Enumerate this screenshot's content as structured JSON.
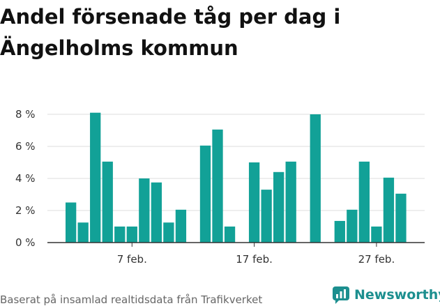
{
  "title": "Andel försenade tåg per dag i Ängelholms kommun",
  "footer": "Baserat på insamlad realtidsdata från Trafikverket",
  "brand": "Newsworthy",
  "colors": {
    "bar": "#12a197",
    "brand": "#1c8f8f",
    "grid": "#dddddd",
    "axis": "#333333"
  },
  "chart_data": {
    "type": "bar",
    "title": "Andel försenade tåg per dag i Ängelholms kommun",
    "xlabel": "",
    "ylabel": "",
    "ylim": [
      0,
      8.5
    ],
    "yticks": [
      0,
      2,
      4,
      6,
      8
    ],
    "ytick_labels": [
      "0 %",
      "2 %",
      "4 %",
      "6 %",
      "8 %"
    ],
    "x_tick_labels": [
      {
        "day": 7,
        "label": "7 feb."
      },
      {
        "day": 17,
        "label": "17 feb."
      },
      {
        "day": 27,
        "label": "27 feb."
      }
    ],
    "grid": true,
    "days": [
      2,
      3,
      4,
      5,
      6,
      7,
      8,
      9,
      10,
      11,
      12,
      13,
      14,
      15,
      16,
      17,
      18,
      19,
      20,
      21,
      22,
      23,
      24,
      25,
      26,
      27,
      28,
      29
    ],
    "values": [
      2.5,
      1.25,
      8.1,
      5.05,
      1.0,
      1.0,
      4.0,
      3.75,
      1.25,
      2.05,
      null,
      6.05,
      7.05,
      1.0,
      null,
      5.0,
      3.3,
      4.4,
      5.05,
      null,
      8.0,
      null,
      1.35,
      2.05,
      5.05,
      1.0,
      4.05,
      3.05
    ]
  }
}
